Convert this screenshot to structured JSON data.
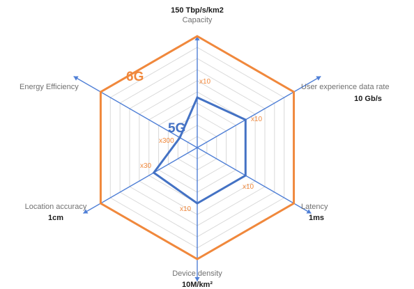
{
  "chart_data": {
    "type": "radar",
    "title": "",
    "axes": [
      {
        "name": "Capacity",
        "target": "150 Tbp/s/km2",
        "multiplier": "x10"
      },
      {
        "name": "User experience data rate",
        "target": "10 Gb/s",
        "multiplier": "x10"
      },
      {
        "name": "Latency",
        "target": "1ms",
        "multiplier": "x10"
      },
      {
        "name": "Device density",
        "target": "10M/km²",
        "multiplier": "x10"
      },
      {
        "name": "Location accuracy",
        "target": "1cm",
        "multiplier": "x30"
      },
      {
        "name": "Energy Efficiency",
        "target": "",
        "multiplier": "x300"
      }
    ],
    "series": [
      {
        "name": "6G",
        "values": [
          1,
          1,
          1,
          1,
          1,
          1
        ]
      },
      {
        "name": "5G",
        "values": [
          0.45,
          0.5,
          0.5,
          0.5,
          0.45,
          0.18
        ]
      }
    ],
    "grid_rings": 10,
    "colors": {
      "6G": "#f0883c",
      "5G": "#4472c4",
      "spoke": "#4f7fd6",
      "grid": "#d9d9d9",
      "multiplier": "#f0883c"
    }
  }
}
